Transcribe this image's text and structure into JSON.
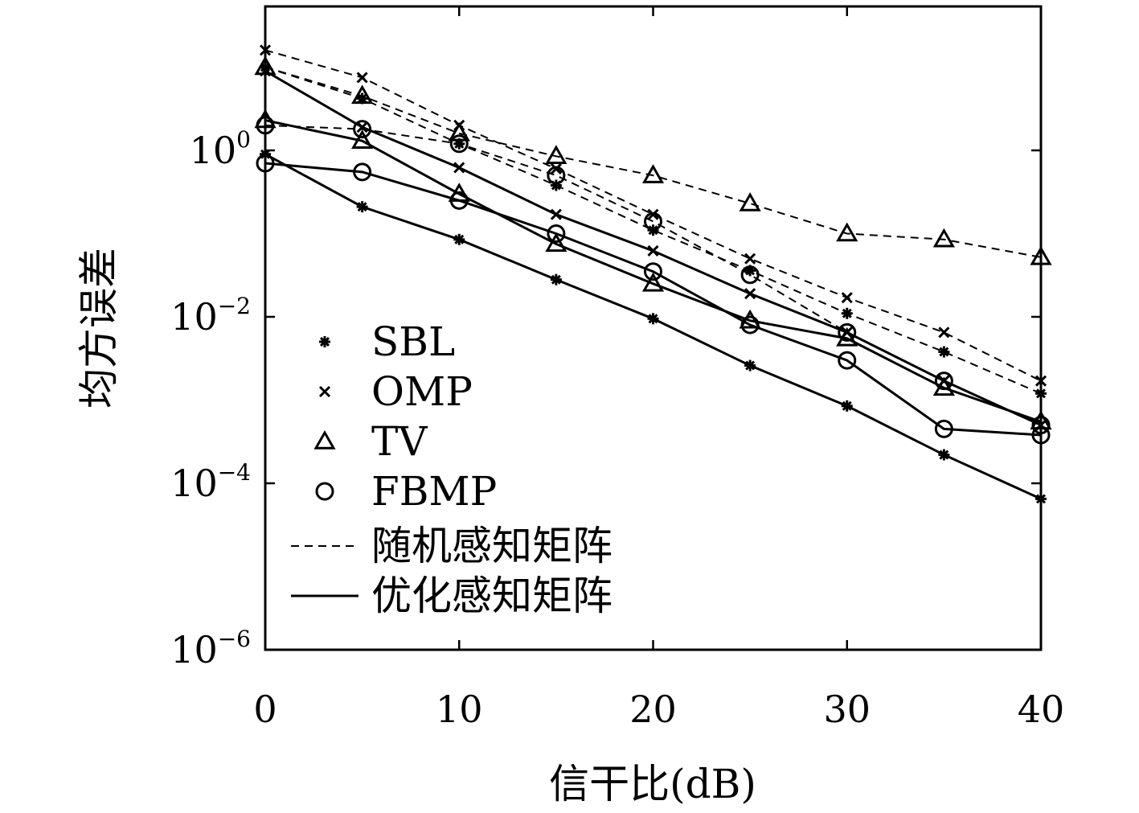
{
  "chart_data": {
    "type": "line",
    "title": "",
    "xlabel": "信干比(dB)",
    "ylabel": "均方误差",
    "x": [
      0,
      5,
      10,
      15,
      20,
      25,
      30,
      35,
      40
    ],
    "xlim": [
      0,
      40
    ],
    "ylim": [
      1e-06,
      100
    ],
    "yscale": "log",
    "xticks": [
      "0",
      "10",
      "20",
      "30",
      "40"
    ],
    "yticks": [
      {
        "base": "10",
        "exp": "0"
      },
      {
        "base": "10",
        "exp": "−2"
      },
      {
        "base": "10",
        "exp": "−4"
      },
      {
        "base": "10",
        "exp": "−6"
      }
    ],
    "grid": false,
    "legend_position": "bottom-left",
    "legend": {
      "markers": [
        {
          "label": "SBL",
          "marker": "star"
        },
        {
          "label": "OMP",
          "marker": "x"
        },
        {
          "label": "TV",
          "marker": "triangle"
        },
        {
          "label": "FBMP",
          "marker": "circle"
        }
      ],
      "lines": [
        {
          "label": "随机感知矩阵",
          "style": "dashed"
        },
        {
          "label": "优化感知矩阵",
          "style": "solid"
        }
      ]
    },
    "series": [
      {
        "algorithm": "SBL",
        "matrix": "随机感知矩阵",
        "marker": "star",
        "style": "dashed",
        "values": [
          10,
          4.2,
          1.2,
          0.38,
          0.11,
          0.036,
          0.011,
          0.0038,
          0.0012
        ]
      },
      {
        "algorithm": "OMP",
        "matrix": "随机感知矩阵",
        "marker": "x",
        "style": "dashed",
        "values": [
          16,
          7.5,
          2,
          0.6,
          0.17,
          0.05,
          0.017,
          0.0065,
          0.0017
        ]
      },
      {
        "algorithm": "TV",
        "matrix": "随机感知矩阵",
        "marker": "triangle",
        "style": "dashed",
        "values": [
          10,
          4.5,
          1.6,
          0.85,
          0.5,
          0.23,
          0.1,
          0.085,
          0.052
        ]
      },
      {
        "algorithm": "FBMP",
        "matrix": "随机感知矩阵",
        "marker": "circle",
        "style": "dashed",
        "values": [
          2,
          1.8,
          1.2,
          0.5,
          0.14,
          0.032,
          0.0065,
          0.0017,
          0.0005
        ]
      },
      {
        "algorithm": "SBL",
        "matrix": "优化感知矩阵",
        "marker": "star",
        "style": "solid",
        "values": [
          0.9,
          0.21,
          0.085,
          0.028,
          0.0095,
          0.0026,
          0.00085,
          0.00022,
          6.5e-05
        ]
      },
      {
        "algorithm": "OMP",
        "matrix": "优化感知矩阵",
        "marker": "x",
        "style": "solid",
        "values": [
          9,
          1.9,
          0.62,
          0.17,
          0.062,
          0.019,
          0.0065,
          0.0017,
          0.0005
        ]
      },
      {
        "algorithm": "TV",
        "matrix": "优化感知矩阵",
        "marker": "triangle",
        "style": "solid",
        "values": [
          2.3,
          1.3,
          0.3,
          0.075,
          0.025,
          0.009,
          0.0055,
          0.0014,
          0.00055
        ]
      },
      {
        "algorithm": "FBMP",
        "matrix": "优化感知矩阵",
        "marker": "circle",
        "style": "solid",
        "values": [
          0.7,
          0.55,
          0.25,
          0.1,
          0.035,
          0.008,
          0.003,
          0.00045,
          0.00038
        ]
      }
    ]
  }
}
